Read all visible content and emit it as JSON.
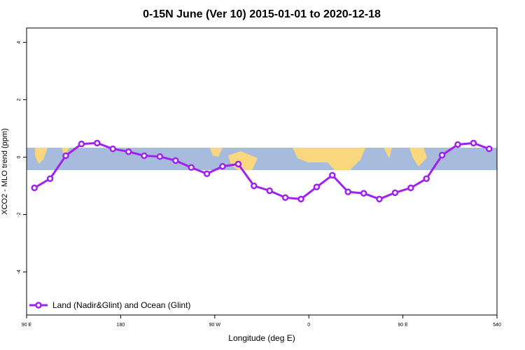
{
  "chart_data": {
    "type": "line",
    "title": "0-15N June (Ver 10)   2015-01-01 to 2020-12-18",
    "x_label": "Longitude (deg E)",
    "y_label": "XCO2 - MLO trend (ppm)",
    "x": [
      97.5,
      112.5,
      127.5,
      142.5,
      157.5,
      172.5,
      187.5,
      202.5,
      217.5,
      232.5,
      247.5,
      262.5,
      277.5,
      292.5,
      307.5,
      322.5,
      337.5,
      352.5,
      367.5,
      382.5,
      397.5,
      412.5,
      427.5,
      442.5,
      457.5,
      472.5,
      487.5,
      502.5,
      517.5,
      532.5
    ],
    "series": [
      {
        "name": "Land (Nadir&Glint) and Ocean (Glint)",
        "color": "#a020f0",
        "values": [
          -1.07,
          -0.75,
          0.05,
          0.46,
          0.49,
          0.29,
          0.19,
          0.05,
          0.02,
          -0.12,
          -0.36,
          -0.58,
          -0.32,
          -0.24,
          -1.0,
          -1.17,
          -1.41,
          -1.46,
          -1.04,
          -0.63,
          -1.21,
          -1.26,
          -1.46,
          -1.24,
          -1.07,
          -0.75,
          0.07,
          0.44,
          0.49,
          0.29
        ]
      }
    ],
    "xlim": [
      90,
      540
    ],
    "xticks": [
      {
        "value": 90,
        "label": "90 E"
      },
      180,
      {
        "value": 270,
        "label": "90 W"
      },
      {
        "value": 360,
        "label": "0"
      },
      {
        "value": 450,
        "label": "90 E"
      },
      540
    ],
    "ylim": [
      -5.5,
      4.5
    ],
    "yticks": [
      -4,
      -2,
      0,
      2,
      4
    ],
    "legend": "bottom-left"
  }
}
